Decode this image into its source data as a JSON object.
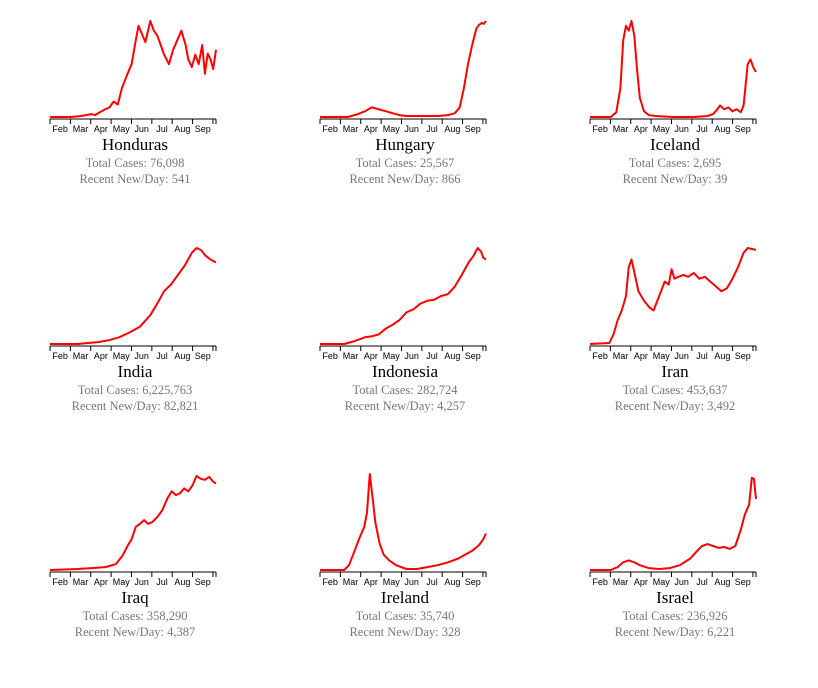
{
  "total_cases_prefix": "Total Cases: ",
  "recent_prefix": "Recent New/Day: ",
  "line_color": "#ff0000",
  "stat_color": "#777777",
  "chart_data": [
    {
      "type": "line",
      "country": "Honduras",
      "total_cases": "76,098",
      "recent_new_per_day": "541",
      "x_ticks": [
        "Feb",
        "Mar",
        "Apr",
        "May",
        "Jun",
        "Jul",
        "Aug",
        "Sep"
      ],
      "x_range_days": [
        0,
        240
      ],
      "y_range": [
        0,
        1
      ],
      "values": [
        [
          0,
          0
        ],
        [
          30,
          0
        ],
        [
          45,
          0.01
        ],
        [
          60,
          0.03
        ],
        [
          65,
          0.02
        ],
        [
          72,
          0.05
        ],
        [
          80,
          0.08
        ],
        [
          86,
          0.1
        ],
        [
          92,
          0.16
        ],
        [
          98,
          0.13
        ],
        [
          104,
          0.3
        ],
        [
          112,
          0.45
        ],
        [
          118,
          0.55
        ],
        [
          124,
          0.8
        ],
        [
          128,
          0.95
        ],
        [
          132,
          0.88
        ],
        [
          138,
          0.78
        ],
        [
          145,
          1.0
        ],
        [
          150,
          0.9
        ],
        [
          155,
          0.85
        ],
        [
          160,
          0.75
        ],
        [
          165,
          0.65
        ],
        [
          172,
          0.55
        ],
        [
          178,
          0.7
        ],
        [
          184,
          0.8
        ],
        [
          190,
          0.9
        ],
        [
          196,
          0.75
        ],
        [
          200,
          0.6
        ],
        [
          205,
          0.52
        ],
        [
          210,
          0.65
        ],
        [
          215,
          0.55
        ],
        [
          220,
          0.75
        ],
        [
          224,
          0.45
        ],
        [
          228,
          0.66
        ],
        [
          232,
          0.6
        ],
        [
          236,
          0.5
        ],
        [
          240,
          0.7
        ]
      ]
    },
    {
      "type": "line",
      "country": "Hungary",
      "total_cases": "25,567",
      "recent_new_per_day": "866",
      "x_ticks": [
        "Feb",
        "Mar",
        "Apr",
        "May",
        "Jun",
        "Jul",
        "Aug",
        "Sep"
      ],
      "x_range_days": [
        0,
        240
      ],
      "y_range": [
        0,
        1
      ],
      "values": [
        [
          0,
          0
        ],
        [
          40,
          0
        ],
        [
          55,
          0.03
        ],
        [
          65,
          0.06
        ],
        [
          75,
          0.1
        ],
        [
          85,
          0.08
        ],
        [
          95,
          0.06
        ],
        [
          105,
          0.04
        ],
        [
          115,
          0.02
        ],
        [
          125,
          0.01
        ],
        [
          140,
          0.01
        ],
        [
          155,
          0.01
        ],
        [
          170,
          0.01
        ],
        [
          185,
          0.02
        ],
        [
          195,
          0.04
        ],
        [
          202,
          0.1
        ],
        [
          208,
          0.3
        ],
        [
          214,
          0.55
        ],
        [
          220,
          0.75
        ],
        [
          226,
          0.92
        ],
        [
          230,
          0.96
        ],
        [
          234,
          0.98
        ],
        [
          237,
          0.97
        ],
        [
          240,
          1.0
        ]
      ]
    },
    {
      "type": "line",
      "country": "Iceland",
      "total_cases": "2,695",
      "recent_new_per_day": "39",
      "x_ticks": [
        "Feb",
        "Mar",
        "Apr",
        "May",
        "Jun",
        "Jul",
        "Aug",
        "Sep"
      ],
      "x_range_days": [
        0,
        240
      ],
      "y_range": [
        0,
        1
      ],
      "values": [
        [
          0,
          0
        ],
        [
          30,
          0
        ],
        [
          38,
          0.05
        ],
        [
          44,
          0.3
        ],
        [
          48,
          0.8
        ],
        [
          52,
          0.95
        ],
        [
          56,
          0.9
        ],
        [
          60,
          1.0
        ],
        [
          64,
          0.85
        ],
        [
          68,
          0.5
        ],
        [
          72,
          0.2
        ],
        [
          78,
          0.06
        ],
        [
          85,
          0.02
        ],
        [
          95,
          0.01
        ],
        [
          120,
          0.0
        ],
        [
          150,
          0.0
        ],
        [
          170,
          0.01
        ],
        [
          178,
          0.03
        ],
        [
          184,
          0.08
        ],
        [
          188,
          0.12
        ],
        [
          194,
          0.08
        ],
        [
          200,
          0.1
        ],
        [
          206,
          0.06
        ],
        [
          212,
          0.08
        ],
        [
          218,
          0.05
        ],
        [
          222,
          0.12
        ],
        [
          228,
          0.55
        ],
        [
          232,
          0.6
        ],
        [
          236,
          0.52
        ],
        [
          240,
          0.47
        ]
      ]
    },
    {
      "type": "line",
      "country": "India",
      "total_cases": "6,225,763",
      "recent_new_per_day": "82,821",
      "x_ticks": [
        "Feb",
        "Mar",
        "Apr",
        "May",
        "Jun",
        "Jul",
        "Aug",
        "Sep"
      ],
      "x_range_days": [
        0,
        240
      ],
      "y_range": [
        0,
        1
      ],
      "values": [
        [
          0,
          0
        ],
        [
          40,
          0
        ],
        [
          55,
          0.01
        ],
        [
          70,
          0.02
        ],
        [
          85,
          0.04
        ],
        [
          100,
          0.07
        ],
        [
          115,
          0.12
        ],
        [
          130,
          0.18
        ],
        [
          145,
          0.3
        ],
        [
          155,
          0.42
        ],
        [
          165,
          0.55
        ],
        [
          175,
          0.62
        ],
        [
          185,
          0.72
        ],
        [
          195,
          0.82
        ],
        [
          205,
          0.95
        ],
        [
          212,
          1.0
        ],
        [
          218,
          0.98
        ],
        [
          225,
          0.92
        ],
        [
          232,
          0.88
        ],
        [
          240,
          0.85
        ]
      ]
    },
    {
      "type": "line",
      "country": "Indonesia",
      "total_cases": "282,724",
      "recent_new_per_day": "4,257",
      "x_ticks": [
        "Feb",
        "Mar",
        "Apr",
        "May",
        "Jun",
        "Jul",
        "Aug",
        "Sep"
      ],
      "x_range_days": [
        0,
        240
      ],
      "y_range": [
        0,
        1
      ],
      "values": [
        [
          0,
          0
        ],
        [
          35,
          0
        ],
        [
          50,
          0.03
        ],
        [
          65,
          0.07
        ],
        [
          75,
          0.08
        ],
        [
          85,
          0.1
        ],
        [
          95,
          0.16
        ],
        [
          105,
          0.2
        ],
        [
          115,
          0.25
        ],
        [
          125,
          0.33
        ],
        [
          135,
          0.36
        ],
        [
          145,
          0.42
        ],
        [
          155,
          0.45
        ],
        [
          165,
          0.46
        ],
        [
          175,
          0.5
        ],
        [
          185,
          0.52
        ],
        [
          195,
          0.6
        ],
        [
          205,
          0.72
        ],
        [
          215,
          0.85
        ],
        [
          222,
          0.92
        ],
        [
          228,
          1.0
        ],
        [
          233,
          0.96
        ],
        [
          236,
          0.9
        ],
        [
          240,
          0.88
        ]
      ]
    },
    {
      "type": "line",
      "country": "Iran",
      "total_cases": "453,637",
      "recent_new_per_day": "3,492",
      "x_ticks": [
        "Feb",
        "Mar",
        "Apr",
        "May",
        "Jun",
        "Jul",
        "Aug",
        "Sep"
      ],
      "x_range_days": [
        0,
        240
      ],
      "y_range": [
        0,
        1
      ],
      "values": [
        [
          0,
          0
        ],
        [
          28,
          0.01
        ],
        [
          34,
          0.1
        ],
        [
          40,
          0.25
        ],
        [
          46,
          0.35
        ],
        [
          52,
          0.5
        ],
        [
          56,
          0.8
        ],
        [
          60,
          0.88
        ],
        [
          64,
          0.75
        ],
        [
          70,
          0.55
        ],
        [
          78,
          0.45
        ],
        [
          86,
          0.38
        ],
        [
          92,
          0.35
        ],
        [
          100,
          0.5
        ],
        [
          108,
          0.65
        ],
        [
          114,
          0.62
        ],
        [
          118,
          0.78
        ],
        [
          122,
          0.68
        ],
        [
          128,
          0.7
        ],
        [
          135,
          0.72
        ],
        [
          142,
          0.7
        ],
        [
          150,
          0.74
        ],
        [
          158,
          0.68
        ],
        [
          166,
          0.7
        ],
        [
          174,
          0.65
        ],
        [
          182,
          0.6
        ],
        [
          190,
          0.55
        ],
        [
          198,
          0.58
        ],
        [
          206,
          0.68
        ],
        [
          214,
          0.8
        ],
        [
          222,
          0.95
        ],
        [
          228,
          1.0
        ],
        [
          234,
          0.99
        ],
        [
          240,
          0.98
        ]
      ]
    },
    {
      "type": "line",
      "country": "Iraq",
      "total_cases": "358,290",
      "recent_new_per_day": "4,387",
      "x_ticks": [
        "Feb",
        "Mar",
        "Apr",
        "May",
        "Jun",
        "Jul",
        "Aug",
        "Sep"
      ],
      "x_range_days": [
        0,
        240
      ],
      "y_range": [
        0,
        1
      ],
      "values": [
        [
          0,
          0
        ],
        [
          40,
          0.01
        ],
        [
          60,
          0.02
        ],
        [
          80,
          0.03
        ],
        [
          95,
          0.06
        ],
        [
          105,
          0.15
        ],
        [
          112,
          0.25
        ],
        [
          118,
          0.32
        ],
        [
          124,
          0.45
        ],
        [
          130,
          0.48
        ],
        [
          136,
          0.52
        ],
        [
          142,
          0.48
        ],
        [
          148,
          0.5
        ],
        [
          155,
          0.55
        ],
        [
          162,
          0.62
        ],
        [
          170,
          0.75
        ],
        [
          176,
          0.82
        ],
        [
          182,
          0.78
        ],
        [
          188,
          0.8
        ],
        [
          194,
          0.85
        ],
        [
          200,
          0.82
        ],
        [
          206,
          0.88
        ],
        [
          212,
          0.98
        ],
        [
          218,
          0.95
        ],
        [
          224,
          0.94
        ],
        [
          230,
          0.97
        ],
        [
          236,
          0.92
        ],
        [
          240,
          0.9
        ]
      ]
    },
    {
      "type": "line",
      "country": "Ireland",
      "total_cases": "35,740",
      "recent_new_per_day": "328",
      "x_ticks": [
        "Feb",
        "Mar",
        "Apr",
        "May",
        "Jun",
        "Jul",
        "Aug",
        "Sep"
      ],
      "x_range_days": [
        0,
        240
      ],
      "y_range": [
        0,
        1
      ],
      "values": [
        [
          0,
          0
        ],
        [
          35,
          0
        ],
        [
          42,
          0.05
        ],
        [
          50,
          0.2
        ],
        [
          58,
          0.35
        ],
        [
          64,
          0.45
        ],
        [
          68,
          0.6
        ],
        [
          72,
          1.0
        ],
        [
          76,
          0.75
        ],
        [
          80,
          0.5
        ],
        [
          86,
          0.28
        ],
        [
          92,
          0.16
        ],
        [
          100,
          0.1
        ],
        [
          110,
          0.05
        ],
        [
          125,
          0.01
        ],
        [
          140,
          0.01
        ],
        [
          155,
          0.03
        ],
        [
          170,
          0.05
        ],
        [
          185,
          0.08
        ],
        [
          200,
          0.12
        ],
        [
          210,
          0.16
        ],
        [
          220,
          0.2
        ],
        [
          230,
          0.26
        ],
        [
          236,
          0.32
        ],
        [
          240,
          0.38
        ]
      ]
    },
    {
      "type": "line",
      "country": "Israel",
      "total_cases": "236,926",
      "recent_new_per_day": "6,221",
      "x_ticks": [
        "Feb",
        "Mar",
        "Apr",
        "May",
        "Jun",
        "Jul",
        "Aug",
        "Sep"
      ],
      "x_range_days": [
        0,
        240
      ],
      "y_range": [
        0,
        1
      ],
      "values": [
        [
          0,
          0
        ],
        [
          30,
          0
        ],
        [
          40,
          0.03
        ],
        [
          48,
          0.08
        ],
        [
          56,
          0.1
        ],
        [
          64,
          0.08
        ],
        [
          72,
          0.05
        ],
        [
          85,
          0.02
        ],
        [
          100,
          0.01
        ],
        [
          115,
          0.02
        ],
        [
          130,
          0.05
        ],
        [
          145,
          0.12
        ],
        [
          155,
          0.2
        ],
        [
          162,
          0.25
        ],
        [
          170,
          0.27
        ],
        [
          178,
          0.25
        ],
        [
          186,
          0.23
        ],
        [
          194,
          0.24
        ],
        [
          202,
          0.22
        ],
        [
          210,
          0.25
        ],
        [
          218,
          0.42
        ],
        [
          224,
          0.58
        ],
        [
          230,
          0.68
        ],
        [
          234,
          0.96
        ],
        [
          237,
          0.95
        ],
        [
          240,
          0.74
        ]
      ]
    }
  ]
}
